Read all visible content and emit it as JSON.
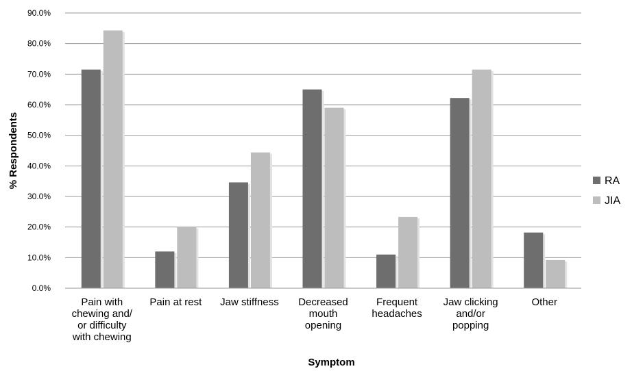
{
  "chart_data": {
    "type": "bar",
    "title": "",
    "xlabel": "Symptom",
    "ylabel": "% Respondents",
    "ylim": [
      0,
      90
    ],
    "y_ticks": [
      "0.0%",
      "10.0%",
      "20.0%",
      "30.0%",
      "40.0%",
      "50.0%",
      "60.0%",
      "70.0%",
      "80.0%",
      "90.0%"
    ],
    "grid": true,
    "legend_position": "right",
    "categories": [
      [
        "Pain with",
        "chewing  and/",
        "or difficulty",
        "with chewing"
      ],
      [
        "Pain at rest"
      ],
      [
        "Jaw stiffness"
      ],
      [
        "Decreased",
        "mouth",
        "opening"
      ],
      [
        "Frequent",
        "headaches"
      ],
      [
        "Jaw clicking",
        "and/or",
        "popping"
      ],
      [
        "Other"
      ]
    ],
    "series": [
      {
        "name": "RA",
        "color": "#6e6e6e",
        "values": [
          71.5,
          12.0,
          34.6,
          65.0,
          11.0,
          62.2,
          18.2
        ]
      },
      {
        "name": "JIA",
        "color": "#bdbdbd",
        "values": [
          84.3,
          20.0,
          44.4,
          59.0,
          23.3,
          71.5,
          9.2
        ]
      }
    ]
  }
}
